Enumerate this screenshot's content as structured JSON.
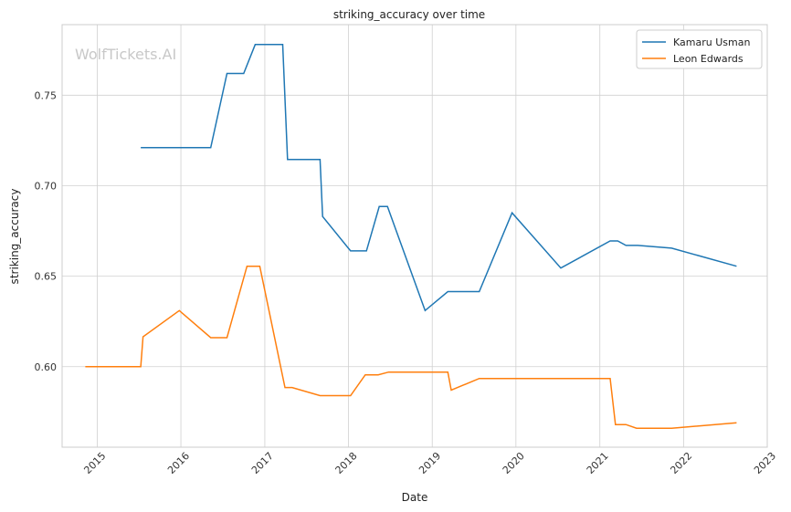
{
  "chart_data": {
    "type": "line",
    "title": "striking_accuracy over time",
    "xlabel": "Date",
    "ylabel": "striking_accuracy",
    "watermark": "WolfTickets.AI",
    "x_ticks": [
      "2015",
      "2016",
      "2017",
      "2018",
      "2019",
      "2020",
      "2021",
      "2022",
      "2023"
    ],
    "y_ticks": [
      "0.60",
      "0.65",
      "0.70",
      "0.75"
    ],
    "xlim": [
      "2014-08-01",
      "2023-01-01"
    ],
    "ylim": [
      0.5555,
      0.789
    ],
    "grid": true,
    "legend_position": "top-right",
    "series": [
      {
        "name": "Kamaru Usman",
        "color": "#1f77b4",
        "points": [
          [
            "2015-07-10",
            0.721
          ],
          [
            "2016-05-10",
            0.721
          ],
          [
            "2016-07-20",
            0.762
          ],
          [
            "2016-10-01",
            0.762
          ],
          [
            "2016-11-20",
            0.778
          ],
          [
            "2017-03-20",
            0.778
          ],
          [
            "2017-04-10",
            0.7145
          ],
          [
            "2017-08-30",
            0.7145
          ],
          [
            "2017-09-10",
            0.683
          ],
          [
            "2018-01-10",
            0.664
          ],
          [
            "2018-03-20",
            0.664
          ],
          [
            "2018-05-15",
            0.6885
          ],
          [
            "2018-06-20",
            0.6885
          ],
          [
            "2018-12-01",
            0.631
          ],
          [
            "2019-03-10",
            0.6415
          ],
          [
            "2019-07-25",
            0.6415
          ],
          [
            "2019-12-15",
            0.685
          ],
          [
            "2020-07-15",
            0.6545
          ],
          [
            "2021-02-15",
            0.6695
          ],
          [
            "2021-03-20",
            0.6695
          ],
          [
            "2021-04-25",
            0.667
          ],
          [
            "2021-06-15",
            0.667
          ],
          [
            "2021-11-10",
            0.6655
          ],
          [
            "2022-08-20",
            0.6555
          ]
        ]
      },
      {
        "name": "Leon Edwards",
        "color": "#ff7f0e",
        "points": [
          [
            "2014-11-10",
            0.6
          ],
          [
            "2015-07-10",
            0.6
          ],
          [
            "2015-07-20",
            0.6165
          ],
          [
            "2015-12-25",
            0.631
          ],
          [
            "2016-05-10",
            0.616
          ],
          [
            "2016-07-20",
            0.616
          ],
          [
            "2016-10-15",
            0.6555
          ],
          [
            "2016-12-10",
            0.6555
          ],
          [
            "2017-03-30",
            0.5885
          ],
          [
            "2017-04-30",
            0.5885
          ],
          [
            "2017-08-30",
            0.584
          ],
          [
            "2018-01-10",
            0.584
          ],
          [
            "2018-03-15",
            0.5955
          ],
          [
            "2018-05-10",
            0.5955
          ],
          [
            "2018-06-25",
            0.597
          ],
          [
            "2019-03-10",
            0.597
          ],
          [
            "2019-03-25",
            0.587
          ],
          [
            "2019-07-25",
            0.5935
          ],
          [
            "2021-02-15",
            0.5935
          ],
          [
            "2021-03-10",
            0.568
          ],
          [
            "2021-04-25",
            0.568
          ],
          [
            "2021-06-10",
            0.566
          ],
          [
            "2021-11-10",
            0.566
          ],
          [
            "2022-08-20",
            0.569
          ]
        ]
      }
    ]
  }
}
